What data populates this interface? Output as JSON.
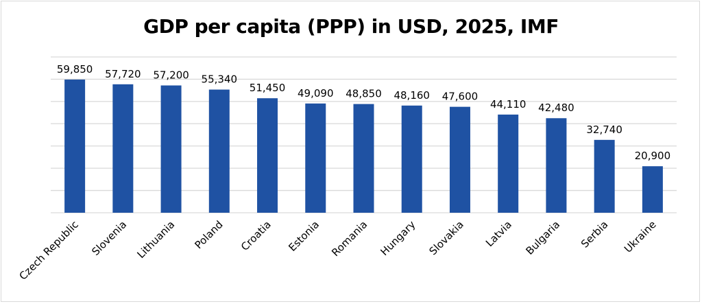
{
  "chart_data": {
    "type": "bar",
    "title": "GDP per capita (PPP) in USD, 2025, IMF",
    "xlabel": "",
    "ylabel": "",
    "ylim": [
      0,
      70000
    ],
    "grid": true,
    "bar_color": "#1f52a3",
    "categories": [
      "Czech Republic",
      "Slovenia",
      "Lithuania",
      "Poland",
      "Croatia",
      "Estonia",
      "Romania",
      "Hungary",
      "Slovakia",
      "Latvia",
      "Bulgaria",
      "Serbia",
      "Ukraine"
    ],
    "values": [
      59850,
      57720,
      57200,
      55340,
      51450,
      49090,
      48850,
      48160,
      47600,
      44110,
      42480,
      32740,
      20900
    ],
    "data_labels": [
      "59,850",
      "57,720",
      "57,200",
      "55,340",
      "51,450",
      "49,090",
      "48,850",
      "48,160",
      "47,600",
      "44,110",
      "42,480",
      "32,740",
      "20,900"
    ]
  }
}
